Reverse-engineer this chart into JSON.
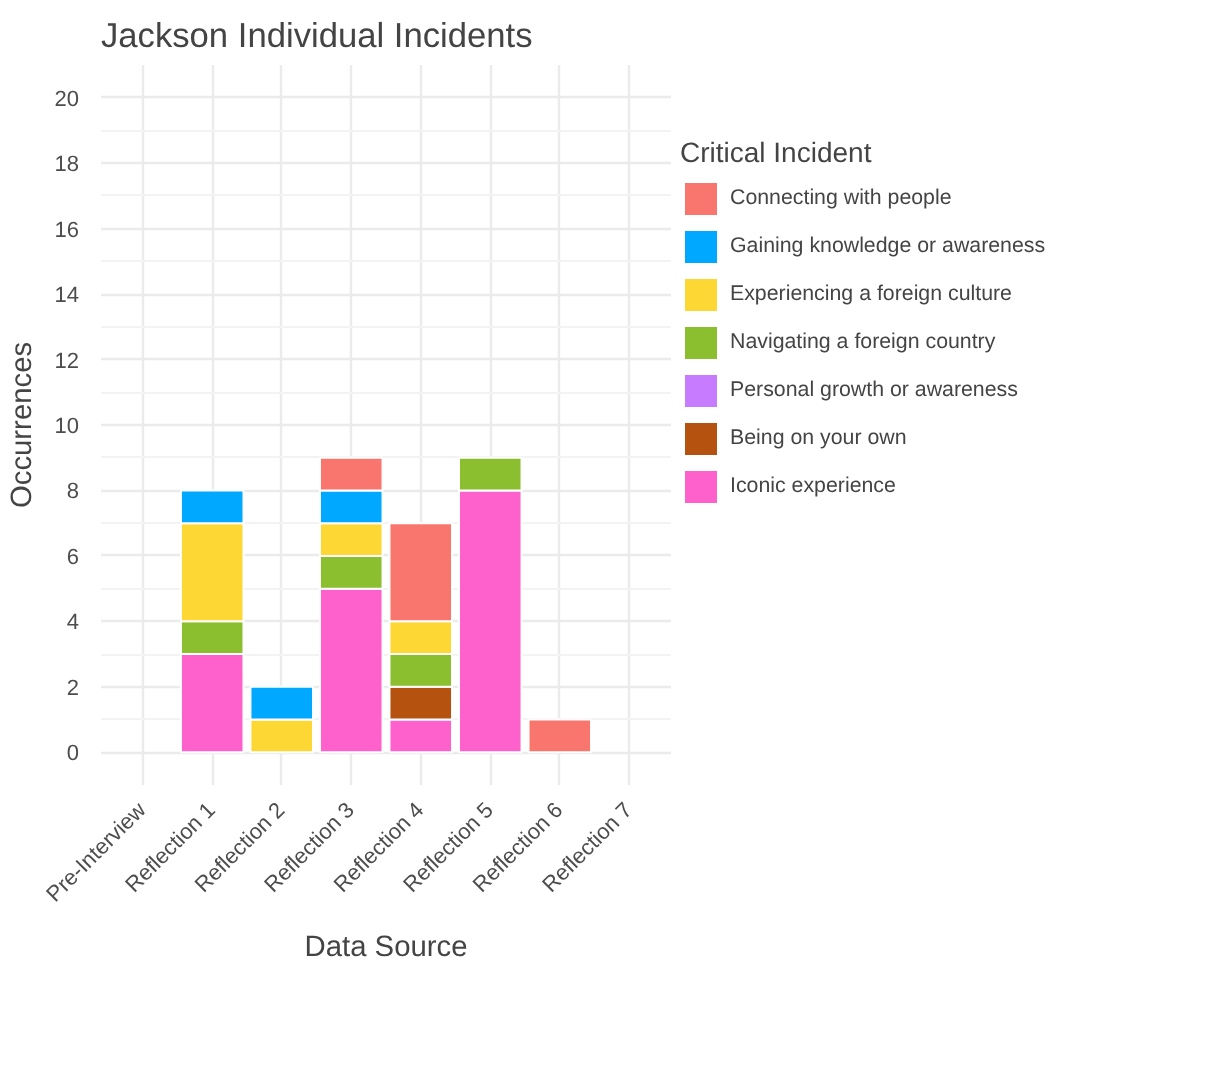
{
  "chart_data": {
    "type": "bar",
    "title": "Jackson Individual Incidents",
    "xlabel": "Data Source",
    "ylabel": "Occurrences",
    "legend_title": "Critical Incident",
    "categories": [
      "Pre-Interview",
      "Reflection 1",
      "Reflection 2",
      "Reflection 3",
      "Reflection 4",
      "Reflection 5",
      "Reflection 6",
      "Reflection 7"
    ],
    "stacked": true,
    "series": [
      {
        "name": "Iconic experience",
        "color": "#ff61cc",
        "values": [
          0,
          3,
          0,
          5,
          1,
          8,
          0,
          0
        ]
      },
      {
        "name": "Being on your own",
        "color": "#b5520f",
        "values": [
          0,
          0,
          0,
          0,
          1,
          0,
          0,
          0
        ]
      },
      {
        "name": "Personal growth or awareness",
        "color": "#c77cff",
        "values": [
          0,
          0,
          0,
          0,
          0,
          0,
          0,
          0
        ]
      },
      {
        "name": "Navigating a foreign country",
        "color": "#8bbf2f",
        "values": [
          0,
          1,
          0,
          1,
          1,
          1,
          0,
          0
        ]
      },
      {
        "name": "Experiencing a foreign culture",
        "color": "#fdd835",
        "values": [
          0,
          3,
          1,
          1,
          1,
          0,
          0,
          0
        ]
      },
      {
        "name": "Gaining knowledge or awareness",
        "color": "#00a9ff",
        "values": [
          0,
          1,
          1,
          1,
          0,
          0,
          0,
          0
        ]
      },
      {
        "name": "Connecting with people",
        "color": "#f8766d",
        "values": [
          0,
          0,
          0,
          1,
          3,
          0,
          1,
          0
        ]
      }
    ],
    "ylim": [
      -1,
      21
    ],
    "yticks": [
      0,
      2,
      4,
      6,
      8,
      10,
      12,
      14,
      16,
      18,
      20
    ],
    "grid": true,
    "legend": "right"
  }
}
